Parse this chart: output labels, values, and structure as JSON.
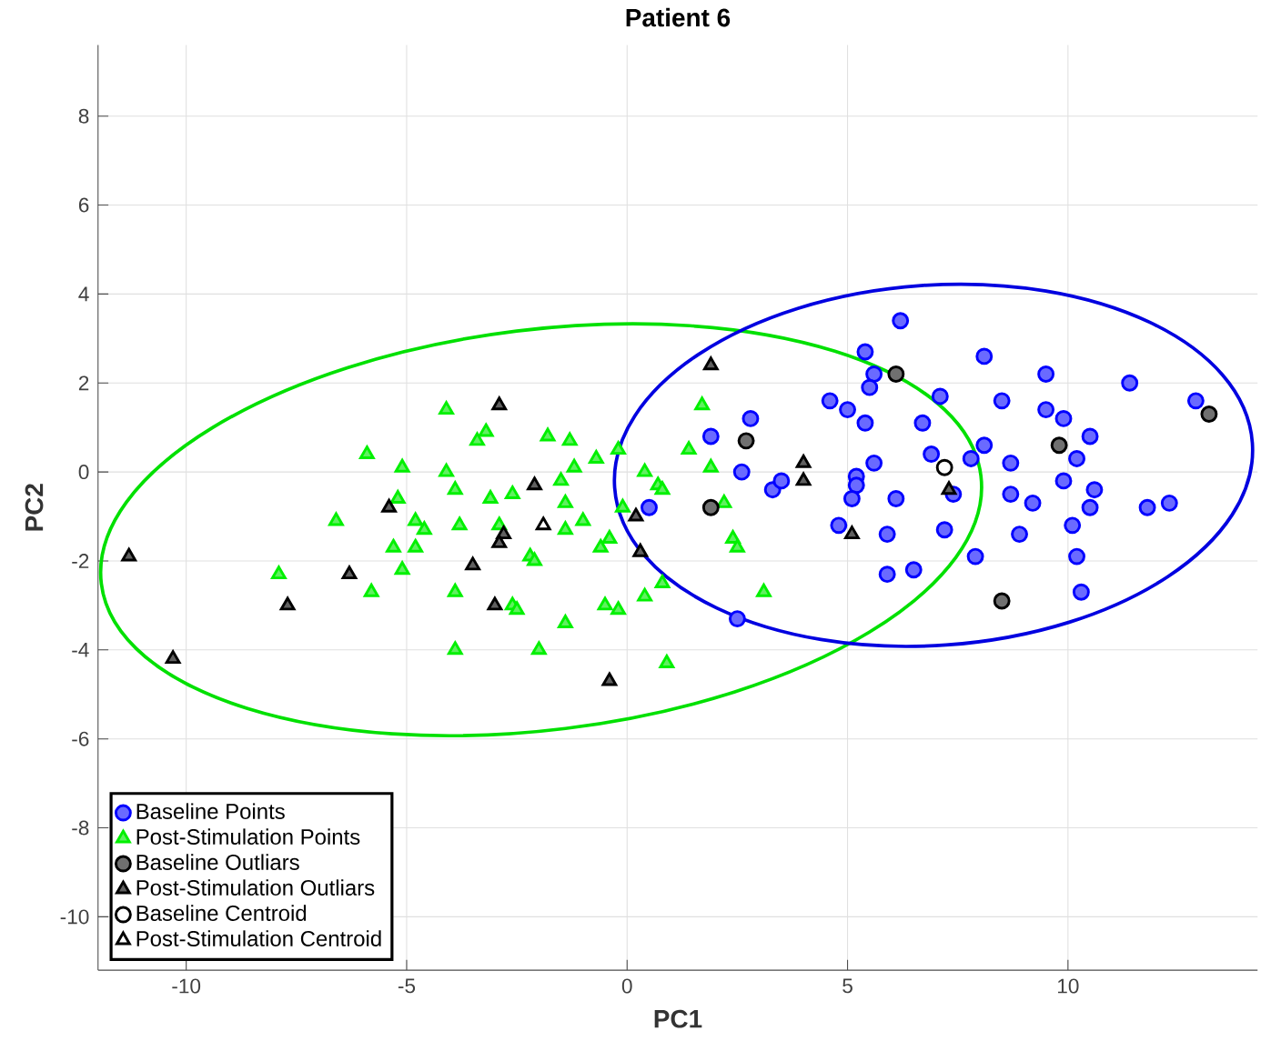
{
  "chart_data": {
    "type": "scatter",
    "title": "Patient 6",
    "xlabel": "PC1",
    "ylabel": "PC2",
    "xlim": [
      -12,
      14.3
    ],
    "ylim": [
      -11.2,
      9.6
    ],
    "xticks": [
      -10,
      -5,
      0,
      5,
      10
    ],
    "yticks": [
      -10,
      -8,
      -6,
      -4,
      -2,
      0,
      2,
      4,
      6,
      8
    ],
    "grid": true,
    "legend": "bottom left",
    "series": [
      {
        "name": "Baseline Points",
        "color": "#6a6aff",
        "marker": "circle",
        "x": [
          6.2,
          5.4,
          5.6,
          5.5,
          4.6,
          5.0,
          5.4,
          6.7,
          7.1,
          2.8,
          1.9,
          2.6,
          3.3,
          3.5,
          5.6,
          5.2,
          5.2,
          5.1,
          6.1,
          4.8,
          5.9,
          5.9,
          6.5,
          2.5,
          0.5,
          7.2,
          8.1,
          9.5,
          11.4,
          12.9,
          8.5,
          9.5,
          9.9,
          10.5,
          6.9,
          7.8,
          8.1,
          8.7,
          10.2,
          9.9,
          7.4,
          8.7,
          9.2,
          10.6,
          10.5,
          11.8,
          12.3,
          8.9,
          10.1,
          7.9,
          10.2,
          10.3
        ],
        "values": [
          3.4,
          2.7,
          2.2,
          1.9,
          1.6,
          1.4,
          1.1,
          1.1,
          1.7,
          1.2,
          0.8,
          0.0,
          -0.4,
          -0.2,
          0.2,
          -0.1,
          -0.3,
          -0.6,
          -0.6,
          -1.2,
          -1.4,
          -2.3,
          -2.2,
          -3.3,
          -0.8,
          -1.3,
          2.6,
          2.2,
          2.0,
          1.6,
          1.6,
          1.4,
          1.2,
          0.8,
          0.4,
          0.3,
          0.6,
          0.2,
          0.3,
          -0.2,
          -0.5,
          -0.5,
          -0.7,
          -0.4,
          -0.8,
          -0.8,
          -0.7,
          -1.4,
          -1.2,
          -1.9,
          -1.9,
          -2.7
        ]
      },
      {
        "name": "Post-Stimulation Points",
        "color": "#60f060",
        "marker": "triangle",
        "x": [
          -4.1,
          -3.2,
          -3.4,
          -5.9,
          -5.1,
          -4.1,
          -3.9,
          -5.2,
          -3.1,
          -2.6,
          -6.6,
          -4.8,
          -4.6,
          -3.8,
          -2.9,
          -5.3,
          -4.8,
          -2.2,
          -5.1,
          -7.9,
          -5.8,
          -3.9,
          -2.6,
          -2.5,
          -3.9,
          -2.0,
          -1.8,
          -1.3,
          -0.7,
          -0.2,
          -1.2,
          -1.5,
          -1.4,
          0.4,
          0.7,
          0.8,
          -0.1,
          -1.0,
          -1.4,
          -0.4,
          -0.6,
          -2.1,
          0.8,
          0.4,
          -0.5,
          -0.2,
          -1.4,
          0.9,
          1.7,
          1.4,
          1.9,
          2.2,
          2.4,
          2.5,
          3.1
        ],
        "values": [
          1.4,
          0.9,
          0.7,
          0.4,
          0.1,
          0.0,
          -0.4,
          -0.6,
          -0.6,
          -0.5,
          -1.1,
          -1.1,
          -1.3,
          -1.2,
          -1.2,
          -1.7,
          -1.7,
          -1.9,
          -2.2,
          -2.3,
          -2.7,
          -2.7,
          -3.0,
          -3.1,
          -4.0,
          -4.0,
          0.8,
          0.7,
          0.3,
          0.5,
          0.1,
          -0.2,
          -0.7,
          0.0,
          -0.3,
          -0.4,
          -0.8,
          -1.1,
          -1.3,
          -1.5,
          -1.7,
          -2.0,
          -2.5,
          -2.8,
          -3.0,
          -3.1,
          -3.4,
          -4.3,
          1.5,
          0.5,
          0.1,
          -0.7,
          -1.5,
          -1.7,
          -2.7
        ]
      },
      {
        "name": "Baseline Outliars",
        "color": "#707070",
        "marker": "circle",
        "x": [
          6.1,
          2.7,
          1.9,
          13.2,
          9.8,
          8.5
        ],
        "values": [
          2.2,
          0.7,
          -0.8,
          1.3,
          0.6,
          -2.9
        ]
      },
      {
        "name": "Post-Stimulation Outliars",
        "color": "#606060",
        "marker": "triangle",
        "x": [
          -11.3,
          -10.3,
          -7.7,
          -6.3,
          -5.4,
          -2.9,
          -2.1,
          -3.5,
          -3.0,
          -2.8,
          -2.9,
          1.9,
          0.2,
          0.3,
          4.0,
          4.0,
          5.1,
          -0.4,
          7.3
        ],
        "values": [
          -1.9,
          -4.2,
          -3.0,
          -2.3,
          -0.8,
          1.5,
          -0.3,
          -2.1,
          -3.0,
          -1.4,
          -1.6,
          2.4,
          -1.0,
          -1.8,
          0.2,
          -0.2,
          -1.4,
          -4.7,
          -0.4
        ]
      },
      {
        "name": "Baseline Centroid",
        "color": "#ffffff",
        "marker": "circle",
        "x": [
          7.2
        ],
        "values": [
          0.1
        ]
      },
      {
        "name": "Post-Stimulation Centroid",
        "color": "#ffffff",
        "marker": "triangle",
        "x": [
          -1.9
        ],
        "values": [
          -1.2
        ]
      }
    ]
  }
}
